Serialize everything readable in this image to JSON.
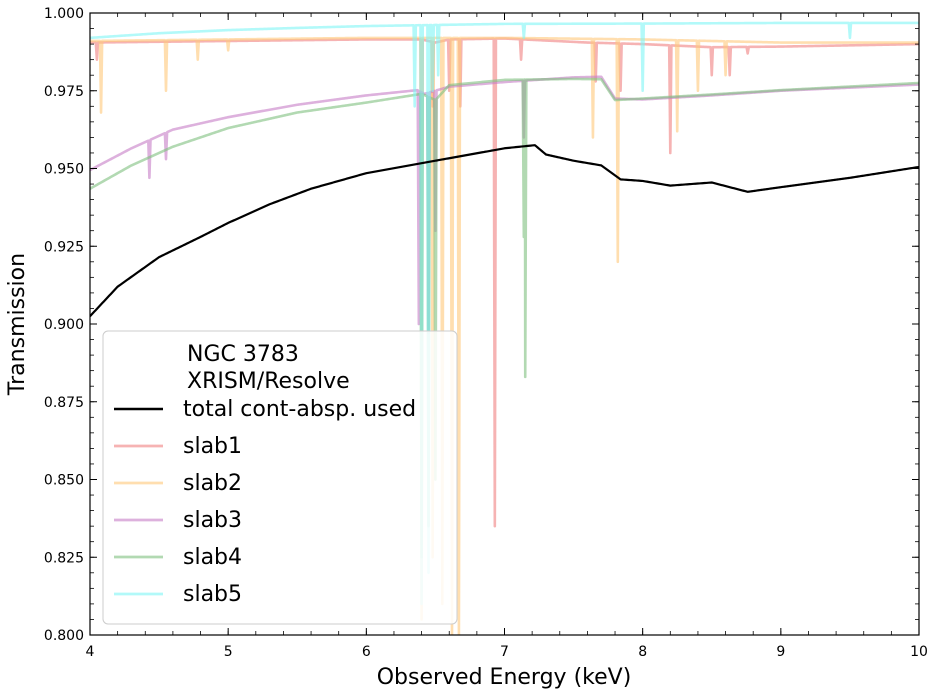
{
  "chart_data": {
    "type": "line",
    "title": "",
    "xlabel": "Observed Energy (keV)",
    "ylabel": "Transmission",
    "xlim": [
      4,
      10
    ],
    "ylim": [
      0.8,
      1.0
    ],
    "xticks": [
      "4",
      "5",
      "6",
      "7",
      "8",
      "9",
      "10"
    ],
    "yticks": [
      "0.800",
      "0.825",
      "0.850",
      "0.875",
      "0.900",
      "0.925",
      "0.950",
      "0.975",
      "1.000"
    ],
    "legend": {
      "location": "lower-left",
      "title_lines": [
        "NGC 3783",
        "XRISM/Resolve"
      ]
    },
    "series": [
      {
        "name": "total cont-absp. used",
        "color": "#000000",
        "opacity": 1.0,
        "continuum": [
          [
            4.0,
            0.9025
          ],
          [
            4.2,
            0.912
          ],
          [
            4.5,
            0.9215
          ],
          [
            4.8,
            0.928
          ],
          [
            5.0,
            0.9325
          ],
          [
            5.3,
            0.9385
          ],
          [
            5.6,
            0.9435
          ],
          [
            6.0,
            0.9485
          ],
          [
            6.5,
            0.9525
          ],
          [
            7.0,
            0.9565
          ],
          [
            7.22,
            0.9575
          ],
          [
            7.3,
            0.9545
          ],
          [
            7.5,
            0.9525
          ],
          [
            7.7,
            0.951
          ],
          [
            7.84,
            0.9465
          ],
          [
            8.0,
            0.946
          ],
          [
            8.2,
            0.9445
          ],
          [
            8.5,
            0.9455
          ],
          [
            8.76,
            0.9425
          ],
          [
            9.0,
            0.944
          ],
          [
            9.5,
            0.947
          ],
          [
            10.0,
            0.9505
          ]
        ],
        "lines": []
      },
      {
        "name": "slab1",
        "color": "#f08080",
        "opacity": 0.6,
        "continuum": [
          [
            4.0,
            0.9905
          ],
          [
            5.0,
            0.991
          ],
          [
            6.0,
            0.9915
          ],
          [
            6.4,
            0.9915
          ],
          [
            6.5,
            0.9905
          ],
          [
            6.6,
            0.9915
          ],
          [
            7.0,
            0.9918
          ],
          [
            7.6,
            0.9905
          ],
          [
            8.0,
            0.99
          ],
          [
            8.5,
            0.989
          ],
          [
            9.0,
            0.9892
          ],
          [
            10.0,
            0.99
          ]
        ],
        "lines": [
          [
            4.05,
            0.985
          ],
          [
            6.4,
            0.895
          ],
          [
            6.48,
            0.97
          ],
          [
            6.6,
            0.975
          ],
          [
            6.68,
            0.97
          ],
          [
            6.93,
            0.835
          ],
          [
            7.12,
            0.985
          ],
          [
            7.66,
            0.978
          ],
          [
            7.84,
            0.975
          ],
          [
            8.2,
            0.955
          ],
          [
            8.5,
            0.98
          ],
          [
            8.63,
            0.98
          ],
          [
            8.76,
            0.987
          ]
        ]
      },
      {
        "name": "slab2",
        "color": "#ffc87a",
        "opacity": 0.6,
        "continuum": [
          [
            4.0,
            0.991
          ],
          [
            5.0,
            0.9915
          ],
          [
            6.0,
            0.992
          ],
          [
            7.0,
            0.992
          ],
          [
            8.0,
            0.9915
          ],
          [
            9.0,
            0.9905
          ],
          [
            10.0,
            0.9905
          ]
        ],
        "lines": [
          [
            4.08,
            0.968
          ],
          [
            4.55,
            0.975
          ],
          [
            4.78,
            0.985
          ],
          [
            5.0,
            0.988
          ],
          [
            6.4,
            0.805
          ],
          [
            6.48,
            0.825
          ],
          [
            6.55,
            0.81
          ],
          [
            6.62,
            0.8
          ],
          [
            6.67,
            0.8
          ],
          [
            7.64,
            0.96
          ],
          [
            7.82,
            0.92
          ],
          [
            8.25,
            0.962
          ],
          [
            8.4,
            0.975
          ],
          [
            8.6,
            0.98
          ]
        ]
      },
      {
        "name": "slab3",
        "color": "#c77dc7",
        "opacity": 0.6,
        "continuum": [
          [
            4.0,
            0.9495
          ],
          [
            4.3,
            0.9565
          ],
          [
            4.6,
            0.9625
          ],
          [
            5.0,
            0.9665
          ],
          [
            5.5,
            0.9705
          ],
          [
            6.0,
            0.9735
          ],
          [
            6.37,
            0.9752
          ],
          [
            6.42,
            0.974
          ],
          [
            6.6,
            0.9763
          ],
          [
            7.0,
            0.9778
          ],
          [
            7.5,
            0.9793
          ],
          [
            7.7,
            0.9795
          ],
          [
            7.8,
            0.9725
          ],
          [
            8.0,
            0.9722
          ],
          [
            8.5,
            0.9735
          ],
          [
            9.0,
            0.975
          ],
          [
            10.0,
            0.977
          ]
        ],
        "lines": [
          [
            4.43,
            0.947
          ],
          [
            4.55,
            0.953
          ],
          [
            6.38,
            0.9
          ],
          [
            6.45,
            0.897
          ],
          [
            6.5,
            0.93
          ],
          [
            7.14,
            0.96
          ]
        ]
      },
      {
        "name": "slab4",
        "color": "#7fbf7f",
        "opacity": 0.6,
        "continuum": [
          [
            4.0,
            0.9435
          ],
          [
            4.3,
            0.951
          ],
          [
            4.6,
            0.957
          ],
          [
            5.0,
            0.963
          ],
          [
            5.5,
            0.968
          ],
          [
            6.0,
            0.9712
          ],
          [
            6.4,
            0.974
          ],
          [
            6.5,
            0.972
          ],
          [
            6.6,
            0.9768
          ],
          [
            7.0,
            0.9785
          ],
          [
            7.5,
            0.9788
          ],
          [
            7.7,
            0.9787
          ],
          [
            7.8,
            0.972
          ],
          [
            8.0,
            0.9725
          ],
          [
            8.5,
            0.9738
          ],
          [
            9.0,
            0.9752
          ],
          [
            10.0,
            0.9775
          ]
        ],
        "lines": [
          [
            6.4,
            0.825
          ],
          [
            6.45,
            0.835
          ],
          [
            6.5,
            0.85
          ],
          [
            7.14,
            0.928
          ],
          [
            7.15,
            0.883
          ]
        ]
      },
      {
        "name": "slab5",
        "color": "#7ff5f5",
        "opacity": 0.6,
        "continuum": [
          [
            4.0,
            0.992
          ],
          [
            4.5,
            0.9935
          ],
          [
            5.0,
            0.9945
          ],
          [
            5.5,
            0.9952
          ],
          [
            6.0,
            0.9958
          ],
          [
            7.0,
            0.9965
          ],
          [
            8.0,
            0.9966
          ],
          [
            9.0,
            0.9968
          ],
          [
            10.0,
            0.9968
          ]
        ],
        "lines": [
          [
            6.35,
            0.97
          ],
          [
            6.4,
            0.81
          ],
          [
            6.45,
            0.82
          ],
          [
            6.48,
            0.975
          ],
          [
            6.52,
            0.98
          ],
          [
            7.14,
            0.992
          ],
          [
            8.0,
            0.975
          ],
          [
            9.5,
            0.992
          ]
        ]
      }
    ]
  }
}
